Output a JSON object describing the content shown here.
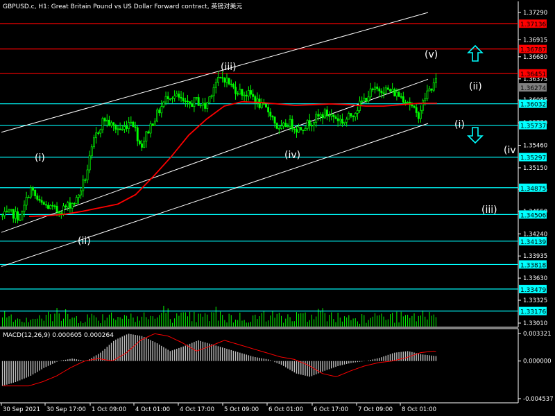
{
  "header": {
    "symbol_info": "GBPUSD.c, H1:  Great Britain Pound vs US Dollar Forward contract, 英镑对美元"
  },
  "colors": {
    "background": "#000000",
    "candle": "#00ff00",
    "line_red": "#ff0000",
    "line_cyan": "#00ffff",
    "channel": "#ffffff",
    "ma": "#ff0000",
    "volume": "#00ff00",
    "macd_hist": "#c0c0c0",
    "macd_signal": "#ff0000",
    "price_box": "#808080",
    "red_tag": "#ff0000",
    "cyan_tag": "#00ffff"
  },
  "main_axis": {
    "ticks": [
      "1.37290",
      "1.36915",
      "1.36680",
      "1.36375",
      "1.36085",
      "1.35770",
      "1.35460",
      "1.35150",
      "1.34855",
      "1.34550",
      "1.34240",
      "1.33935",
      "1.33630",
      "1.33325",
      "1.33010"
    ]
  },
  "price_tag": "1.36274",
  "horizontal_levels": [
    {
      "label": "1.37136",
      "color": "red"
    },
    {
      "label": "1.36787",
      "color": "red"
    },
    {
      "label": "1.36451",
      "color": "red"
    },
    {
      "label": "1.36032",
      "color": "cyan"
    },
    {
      "label": "1.35737",
      "color": "cyan"
    },
    {
      "label": "1.35297",
      "color": "cyan"
    },
    {
      "label": "1.34875",
      "color": "cyan"
    },
    {
      "label": "1.34506",
      "color": "cyan"
    },
    {
      "label": "1.34139",
      "color": "cyan"
    },
    {
      "label": "1.33818",
      "color": "cyan"
    },
    {
      "label": "1.33479",
      "color": "cyan"
    },
    {
      "label": "1.33176",
      "color": "cyan"
    }
  ],
  "wave_labels": [
    "(i)",
    "(ii)",
    "(iii)",
    "(iv)",
    "(v)",
    "(ii)",
    "(i)",
    "(iv",
    "(iii)"
  ],
  "arrows": [
    "up-arrow",
    "down-arrow"
  ],
  "macd": {
    "title": "MACD(12,26,9) 0.000605 0.000264",
    "ticks": [
      "0.003321",
      "0.000000",
      "-0.004537"
    ]
  },
  "time_axis": [
    "30 Sep 2021",
    "30 Sep 17:00",
    "1 Oct 09:00",
    "4 Oct 01:00",
    "4 Oct 17:00",
    "5 Oct 09:00",
    "6 Oct 01:00",
    "6 Oct 17:00",
    "7 Oct 09:00",
    "8 Oct 01:00"
  ],
  "chart_data": {
    "type": "candlestick",
    "symbol": "GBPUSD.c",
    "timeframe": "H1",
    "x": [
      "30 Sep 2021",
      "30 Sep 17:00",
      "1 Oct 09:00",
      "4 Oct 01:00",
      "4 Oct 17:00",
      "5 Oct 09:00",
      "6 Oct 01:00",
      "6 Oct 17:00",
      "7 Oct 09:00",
      "8 Oct 01:00"
    ],
    "close_path": [
      1.3448,
      1.3452,
      1.3446,
      1.3487,
      1.3466,
      1.3461,
      1.3455,
      1.3462,
      1.347,
      1.3502,
      1.3556,
      1.3583,
      1.3571,
      1.3567,
      1.3583,
      1.3544,
      1.3572,
      1.3594,
      1.3616,
      1.3612,
      1.36,
      1.3608,
      1.3598,
      1.3631,
      1.364,
      1.3625,
      1.3618,
      1.3615,
      1.36,
      1.3592,
      1.3565,
      1.3578,
      1.3568,
      1.3575,
      1.3583,
      1.359,
      1.3585,
      1.3578,
      1.359,
      1.3606,
      1.362,
      1.3624,
      1.3621,
      1.3615,
      1.3607,
      1.3585,
      1.3618,
      1.3633
    ],
    "moving_average": [
      1.3448,
      1.3449,
      1.3451,
      1.3455,
      1.346,
      1.3465,
      1.3478,
      1.3503,
      1.353,
      1.356,
      1.3582,
      1.36,
      1.3606,
      1.3605,
      1.3603,
      1.3601,
      1.3602,
      1.3603,
      1.3602,
      1.36,
      1.36,
      1.3602,
      1.3604,
      1.3604
    ],
    "channel_lines": [
      {
        "from": [
          "30 Sep 2021",
          1.3564
        ],
        "to": [
          "8 Oct 01:00",
          1.3729
        ]
      },
      {
        "from": [
          "30 Sep 2021",
          1.3426
        ],
        "to": [
          "8 Oct 01:00",
          1.3637
        ]
      },
      {
        "from": [
          "30 Sep 2021",
          1.3379
        ],
        "to": [
          "8 Oct 01:00",
          1.3576
        ]
      }
    ],
    "levels": [
      1.37136,
      1.36787,
      1.36451,
      1.36032,
      1.35737,
      1.35297,
      1.34875,
      1.34506,
      1.34139,
      1.33818,
      1.33479,
      1.33176
    ],
    "last_price": 1.36274,
    "macd_values": {
      "macd": 0.000605,
      "signal": 0.000264
    },
    "macd_range": [
      -0.004537,
      0.003321
    ],
    "grid": false
  }
}
